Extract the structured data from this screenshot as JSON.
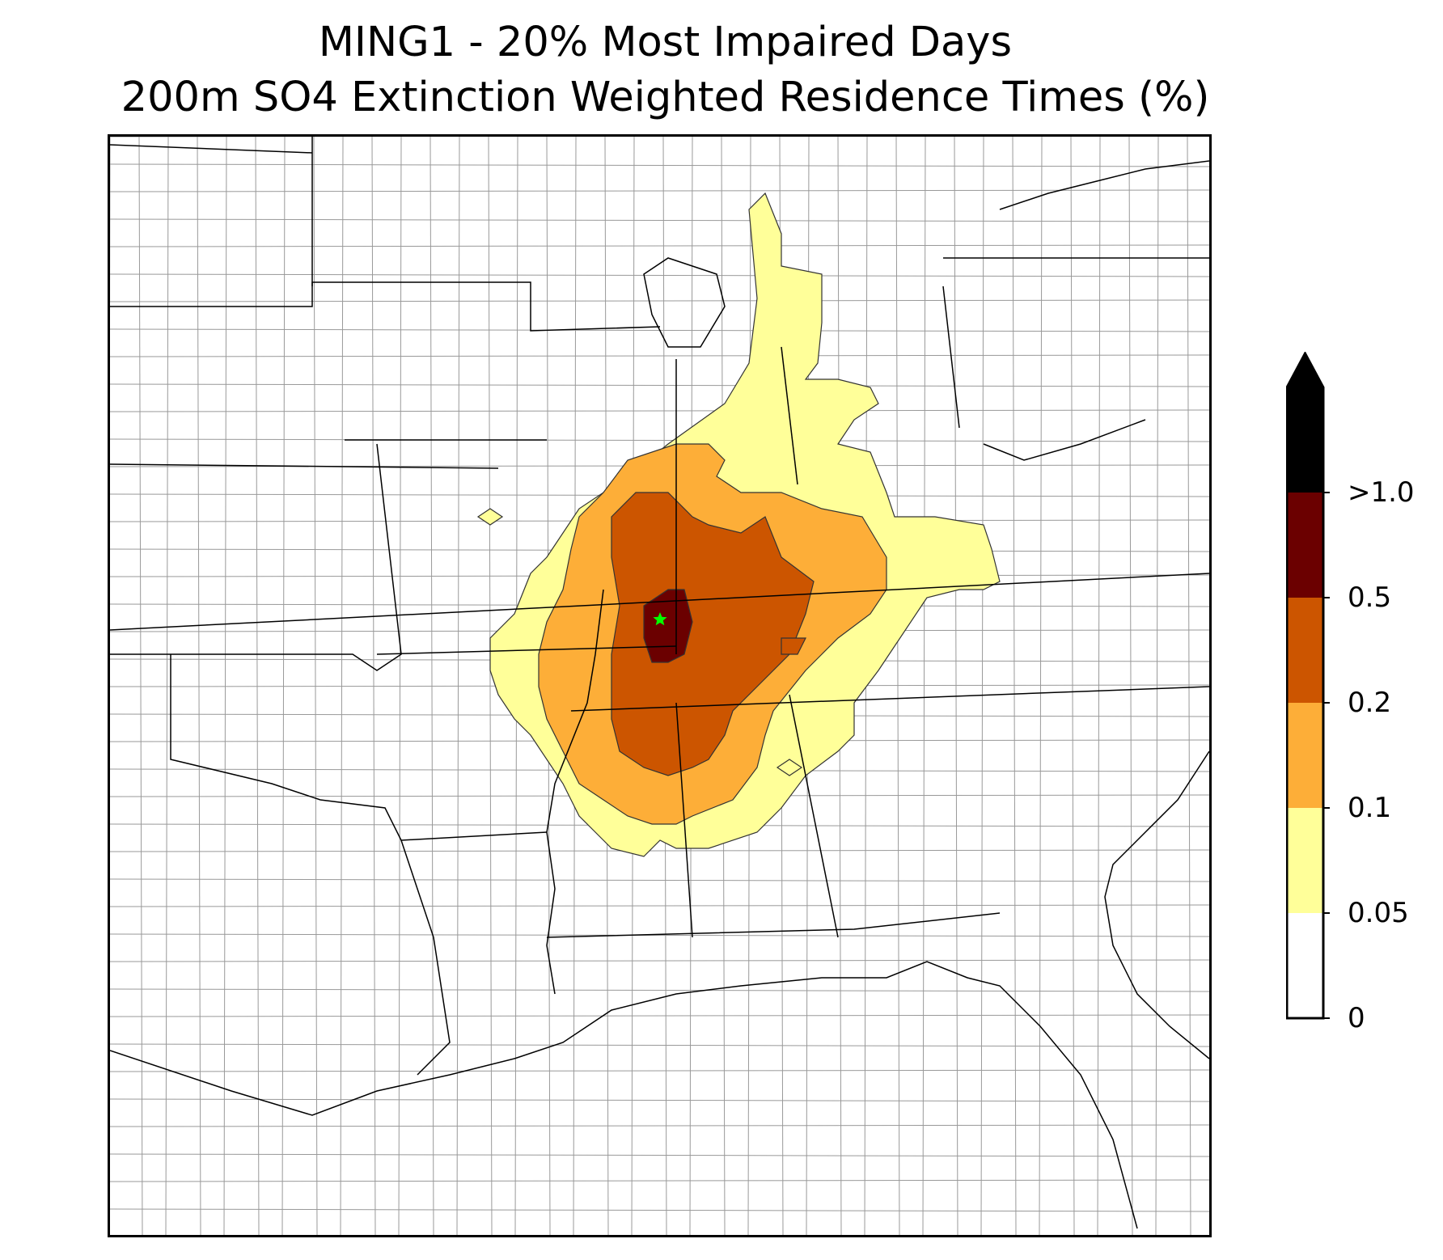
{
  "title": {
    "line1": "MING1 - 20% Most Impaired Days",
    "line2": "200m SO4 Extinction Weighted Residence Times (%)"
  },
  "colorbar": {
    "extend": "max",
    "bins": [
      {
        "label": "0",
        "color": "#ffffff"
      },
      {
        "label": "0.05",
        "color": "#ffff99"
      },
      {
        "label": "0.1",
        "color": "#fdae38"
      },
      {
        "label": "0.2",
        "color": "#cc5500"
      },
      {
        "label": "0.5",
        "color": "#6b0000"
      },
      {
        "label": ">1.0",
        "color": "#000000"
      }
    ],
    "extend_color": "#000000"
  },
  "map": {
    "site_marker": {
      "name": "MING1",
      "symbol": "star",
      "color": "#00ff00"
    },
    "state_line_color": "#000000",
    "county_line_color": "#999999"
  }
}
